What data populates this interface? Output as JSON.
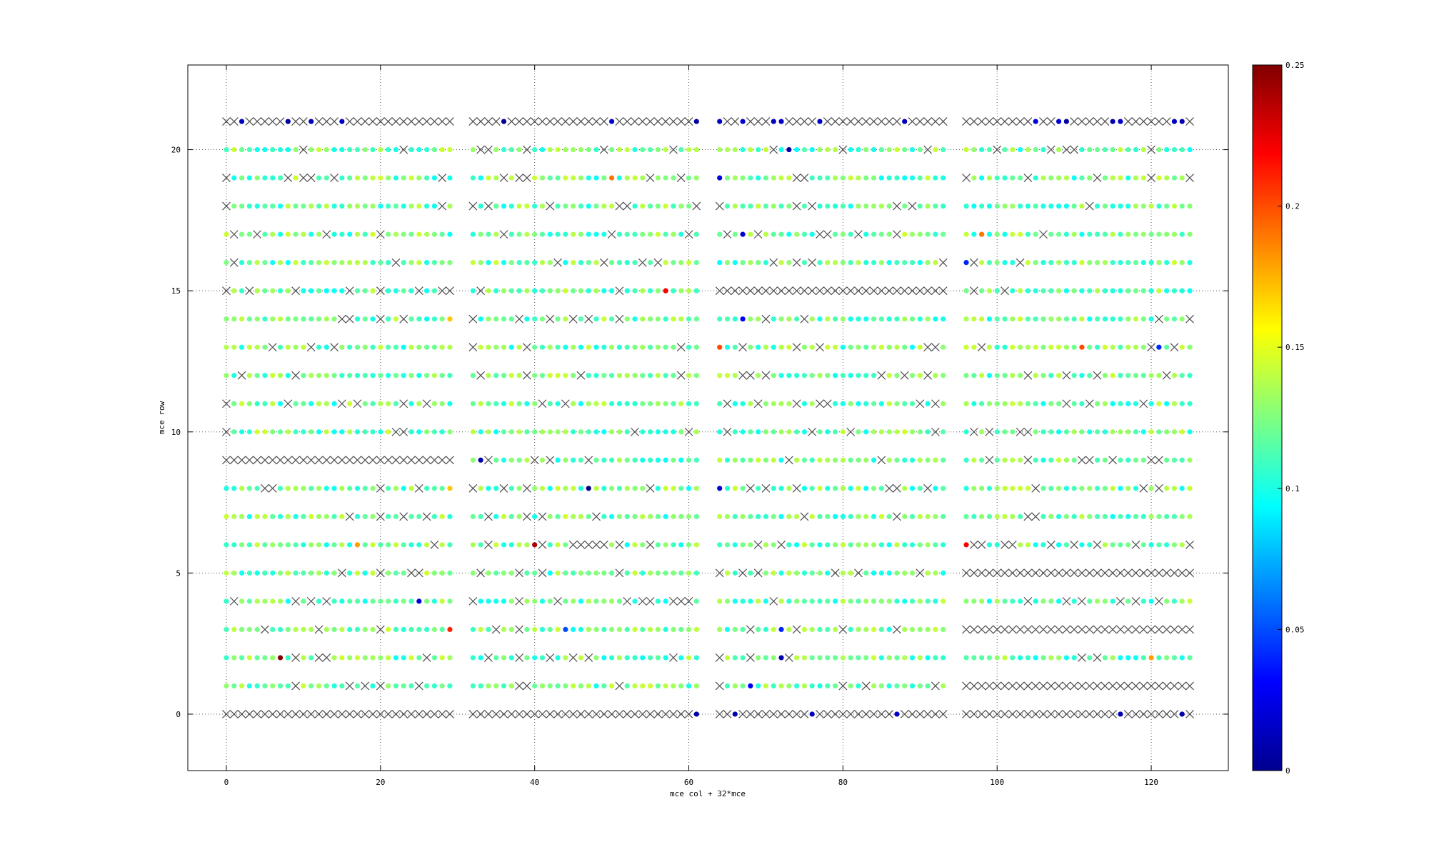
{
  "chart_data": {
    "type": "scatter",
    "title": "",
    "xlabel": "mce col + 32*mce",
    "ylabel": "mce row",
    "xlim": [
      -5,
      130
    ],
    "ylim": [
      -2,
      23
    ],
    "xticks": [
      0,
      20,
      40,
      60,
      80,
      100,
      120
    ],
    "yticks": [
      0,
      5,
      10,
      15,
      20
    ],
    "grid": "dotted",
    "colorbar": {
      "colormap": "jet",
      "range": [
        0,
        0.25
      ],
      "ticks": [
        "0",
        "0.05",
        "0.1",
        "0.15",
        "0.2",
        "0.25"
      ]
    },
    "cell_grid": {
      "columns": "0-29, 32-61, 64-93, 96-125",
      "rows": "0-21",
      "marker_valid": "filled circle colored by value",
      "marker_dead": "x (gray)",
      "typical_value": 0.12
    },
    "dead_rows": [
      {
        "row": 0,
        "cols": "0-29, 32-61, 64-93, 96-125 (most)"
      },
      {
        "row": 21,
        "cols": "most"
      },
      {
        "row": 9,
        "cols": "0-29"
      },
      {
        "row": 15,
        "cols": "64-93"
      },
      {
        "row": 5,
        "cols": "96-125"
      },
      {
        "row": 3,
        "cols": "96-125"
      },
      {
        "row": 1,
        "cols": "96-125"
      }
    ],
    "highlighted_points": [
      {
        "x": 7,
        "y": 2,
        "value": 0.25
      },
      {
        "x": 29,
        "y": 3,
        "value": 0.21
      },
      {
        "x": 40,
        "y": 6,
        "value": 0.24
      },
      {
        "x": 57,
        "y": 15,
        "value": 0.22
      },
      {
        "x": 96,
        "y": 6,
        "value": 0.22
      },
      {
        "x": 64,
        "y": 13,
        "value": 0.2
      },
      {
        "x": 111,
        "y": 13,
        "value": 0.2
      },
      {
        "x": 98,
        "y": 17,
        "value": 0.19
      },
      {
        "x": 50,
        "y": 19,
        "value": 0.19
      },
      {
        "x": 17,
        "y": 6,
        "value": 0.18
      },
      {
        "x": 120,
        "y": 2,
        "value": 0.18
      },
      {
        "x": 29,
        "y": 8,
        "value": 0.17
      },
      {
        "x": 29,
        "y": 14,
        "value": 0.17
      },
      {
        "x": 47,
        "y": 8,
        "value": 0.0
      },
      {
        "x": 25,
        "y": 4,
        "value": 0.02
      },
      {
        "x": 72,
        "y": 2,
        "value": 0.01
      },
      {
        "x": 68,
        "y": 1,
        "value": 0.03
      },
      {
        "x": 44,
        "y": 3,
        "value": 0.05
      },
      {
        "x": 33,
        "y": 9,
        "value": 0.01
      },
      {
        "x": 64,
        "y": 8,
        "value": 0.02
      },
      {
        "x": 67,
        "y": 17,
        "value": 0.02
      },
      {
        "x": 64,
        "y": 19,
        "value": 0.02
      },
      {
        "x": 96,
        "y": 16,
        "value": 0.04
      },
      {
        "x": 121,
        "y": 13,
        "value": 0.04
      },
      {
        "x": 72,
        "y": 3,
        "value": 0.04
      },
      {
        "x": 67,
        "y": 14,
        "value": 0.03
      },
      {
        "x": 73,
        "y": 20,
        "value": 0.01
      }
    ]
  }
}
